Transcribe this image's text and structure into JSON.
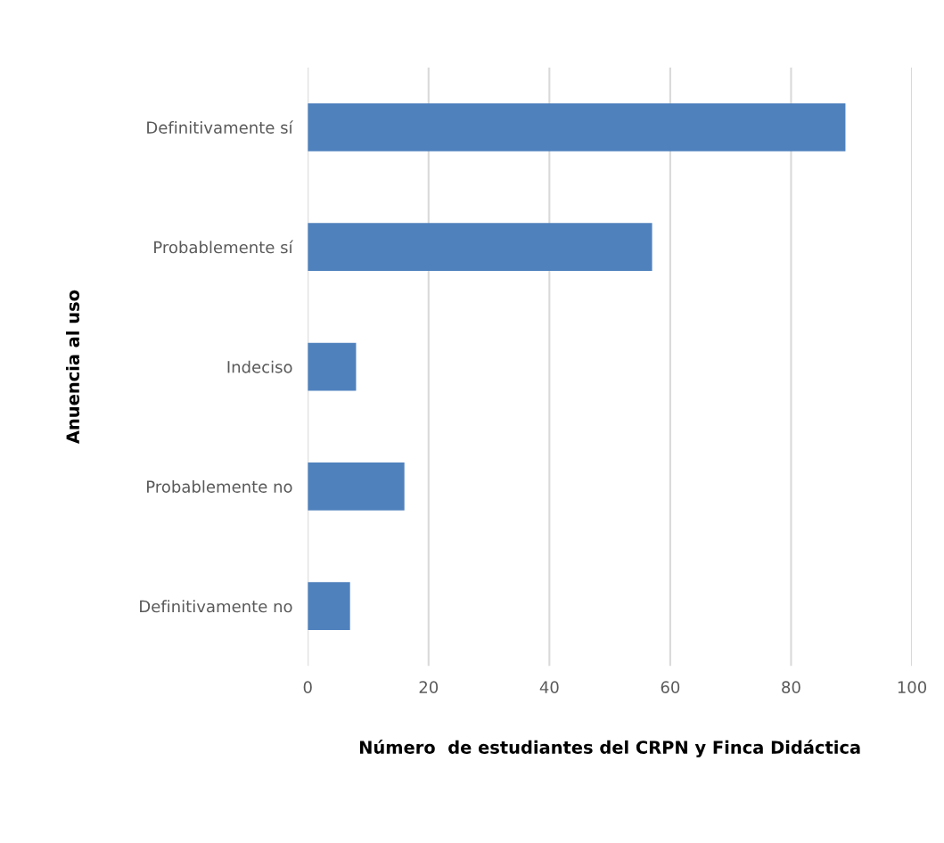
{
  "chart_data": {
    "type": "bar",
    "orientation": "horizontal",
    "categories": [
      "Definitivamente sí",
      "Probablemente sí",
      "Indeciso",
      "Probablemente no",
      "Definitivamente no"
    ],
    "values": [
      89,
      57,
      8,
      16,
      7
    ],
    "color": "#4f81bd",
    "xlabel": "Número  de estudiantes del CRPN y Finca Didáctica",
    "ylabel": "Anuencia al uso",
    "xlim": [
      0,
      100
    ],
    "xticks": [
      0,
      20,
      40,
      60,
      80,
      100
    ],
    "grid": "x"
  }
}
